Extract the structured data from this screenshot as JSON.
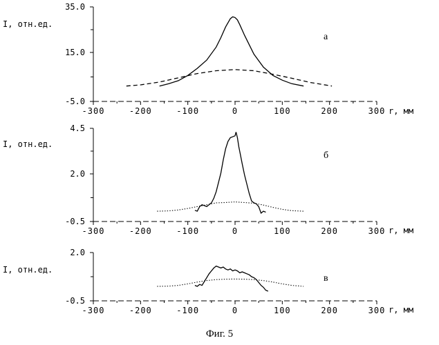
{
  "figure": {
    "caption": "Фиг. 5"
  },
  "chart_data": [
    {
      "type": "line",
      "panel_label": "а",
      "ylabel": "I, отн.ед.",
      "xlabel": "r, мм",
      "xlim": [
        -300,
        300
      ],
      "ylim": [
        -5.0,
        35.0
      ],
      "yticks": [
        "35.0",
        "15.0",
        "-5.0"
      ],
      "xticks": [
        "-300",
        "-200",
        "-100",
        "0",
        "100",
        "200",
        "300"
      ],
      "series": [
        {
          "style": "solid",
          "x": [
            -160,
            -140,
            -120,
            -100,
            -80,
            -60,
            -40,
            -30,
            -20,
            -10,
            -5,
            0,
            5,
            10,
            20,
            30,
            40,
            60,
            80,
            100,
            120,
            145
          ],
          "y": [
            1.5,
            2.5,
            3.8,
            6.0,
            9.0,
            12.5,
            18.0,
            22.0,
            26.5,
            30.0,
            30.8,
            30.5,
            29.5,
            27.5,
            23.0,
            19.0,
            15.0,
            9.5,
            6.0,
            4.0,
            2.5,
            1.5
          ]
        },
        {
          "style": "dashed",
          "x": [
            -230,
            -200,
            -160,
            -120,
            -80,
            -40,
            0,
            40,
            80,
            120,
            160,
            205
          ],
          "y": [
            1.5,
            2.0,
            3.2,
            5.0,
            6.8,
            8.0,
            8.5,
            8.0,
            6.5,
            4.8,
            3.0,
            1.5
          ]
        }
      ]
    },
    {
      "type": "line",
      "panel_label": "б",
      "ylabel": "I, отн.ед.",
      "xlabel": "r, мм",
      "xlim": [
        -300,
        300
      ],
      "ylim": [
        -0.5,
        4.5
      ],
      "yticks": [
        "4.5",
        "2.0",
        "-0.5"
      ],
      "xticks": [
        "-300",
        "-200",
        "-100",
        "0",
        "100",
        "200",
        "300"
      ],
      "series": [
        {
          "style": "solid",
          "x": [
            -85,
            -80,
            -75,
            -70,
            -60,
            -50,
            -45,
            -40,
            -35,
            -30,
            -25,
            -20,
            -15,
            -10,
            -5,
            0,
            2,
            5,
            8,
            12,
            15,
            20,
            25,
            30,
            35,
            40,
            45,
            50,
            55,
            60,
            65
          ],
          "y": [
            0.1,
            0.05,
            0.3,
            0.4,
            0.3,
            0.5,
            0.75,
            1.1,
            1.6,
            2.1,
            2.8,
            3.4,
            3.8,
            4.0,
            4.05,
            4.1,
            4.3,
            4.0,
            3.5,
            3.0,
            2.6,
            2.0,
            1.5,
            1.0,
            0.6,
            0.5,
            0.45,
            0.3,
            -0.05,
            0.05,
            0.0
          ]
        },
        {
          "style": "dotted",
          "x": [
            -165,
            -140,
            -120,
            -100,
            -80,
            -60,
            -40,
            -20,
            0,
            20,
            40,
            60,
            80,
            100,
            120,
            145
          ],
          "y": [
            0.05,
            0.07,
            0.12,
            0.2,
            0.3,
            0.4,
            0.5,
            0.52,
            0.55,
            0.52,
            0.48,
            0.38,
            0.26,
            0.15,
            0.08,
            0.05
          ]
        }
      ]
    },
    {
      "type": "line",
      "panel_label": "в",
      "ylabel": "I, отн.ед.",
      "xlabel": "r, мм",
      "xlim": [
        -300,
        300
      ],
      "ylim": [
        -0.5,
        2.0
      ],
      "yticks": [
        "2.0",
        "-0.5"
      ],
      "xticks": [
        "-300",
        "-200",
        "-100",
        "0",
        "100",
        "200",
        "300"
      ],
      "series": [
        {
          "style": "solid",
          "x": [
            -85,
            -80,
            -75,
            -70,
            -65,
            -60,
            -55,
            -50,
            -45,
            -40,
            -35,
            -30,
            -25,
            -20,
            -15,
            -10,
            -5,
            0,
            5,
            10,
            15,
            20,
            25,
            30,
            35,
            40,
            45,
            50,
            55,
            60,
            65,
            70
          ],
          "y": [
            0.3,
            0.25,
            0.35,
            0.3,
            0.5,
            0.7,
            0.9,
            1.05,
            1.2,
            1.3,
            1.25,
            1.2,
            1.25,
            1.15,
            1.1,
            1.15,
            1.05,
            1.1,
            1.05,
            0.95,
            1.0,
            0.95,
            0.9,
            0.85,
            0.75,
            0.7,
            0.6,
            0.45,
            0.3,
            0.2,
            0.05,
            0.0
          ]
        },
        {
          "style": "dotted",
          "x": [
            -165,
            -140,
            -120,
            -100,
            -80,
            -60,
            -40,
            -20,
            0,
            20,
            40,
            60,
            80,
            100,
            120,
            145
          ],
          "y": [
            0.25,
            0.26,
            0.3,
            0.38,
            0.47,
            0.55,
            0.6,
            0.62,
            0.63,
            0.62,
            0.6,
            0.55,
            0.47,
            0.38,
            0.3,
            0.25
          ]
        }
      ]
    }
  ]
}
